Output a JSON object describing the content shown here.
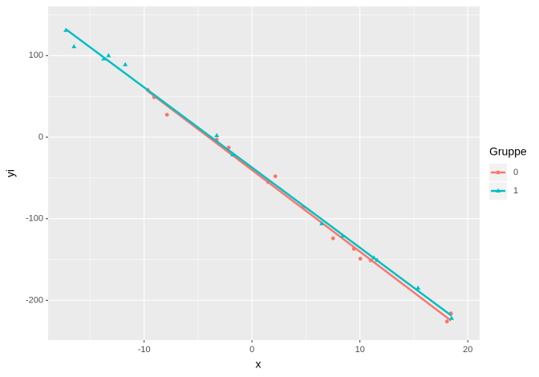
{
  "chart_data": {
    "type": "scatter",
    "x_label": "x",
    "y_label": "yi",
    "legend_title": "Gruppe",
    "xlim": [
      -18.9,
      21.1
    ],
    "ylim": [
      -248.8,
      160.3
    ],
    "xticks": [
      -10,
      0,
      10,
      20
    ],
    "yticks": [
      -200,
      -100,
      0,
      100
    ],
    "grid": true,
    "regression_lines": true,
    "legend_position": "right",
    "series": [
      {
        "name": "0",
        "color": "#F8766D",
        "marker": "circle",
        "x": [
          -9.67,
          -9.07,
          -7.88,
          -3.27,
          -2.16,
          1.49,
          2.16,
          4.76,
          7.51,
          9.44,
          10.04,
          11.0,
          18.07,
          18.44
        ],
        "values": [
          58,
          49,
          27.5,
          -3,
          -12.8,
          -55,
          -48,
          -85.5,
          -124,
          -137,
          -149,
          -151,
          -226,
          -216
        ]
      },
      {
        "name": "1",
        "color": "#00BFC4",
        "marker": "triangle",
        "x": [
          -17.25,
          -16.5,
          -13.75,
          -13.3,
          -11.75,
          -3.27,
          -1.78,
          6.47,
          8.4,
          11.3,
          11.6,
          15.39,
          18.5
        ],
        "values": [
          131,
          111,
          96,
          100,
          89,
          2,
          -21.6,
          -106,
          -121,
          -148,
          -151,
          -185,
          -222
        ]
      }
    ]
  }
}
